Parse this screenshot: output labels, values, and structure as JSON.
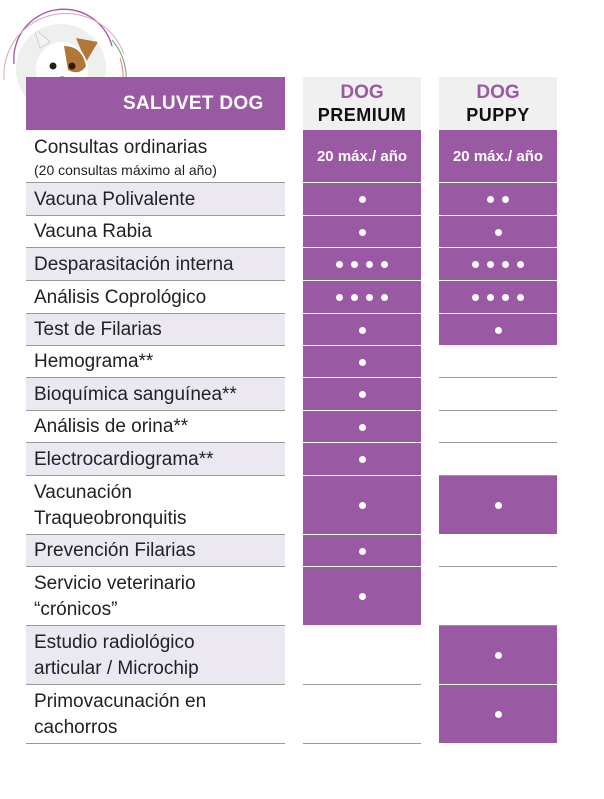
{
  "header": {
    "brand_title": "SALUVET DOG",
    "columns": [
      {
        "line1": "DOG",
        "line2": "PREMIUM"
      },
      {
        "line1": "DOG",
        "line2": "PUPPY"
      }
    ]
  },
  "colors": {
    "accent": "#9a5aa3",
    "row_shade": "#ebe8f1",
    "header_bg": "#f0f0f0"
  },
  "rows": [
    {
      "label": "Consultas ordinarias",
      "sub": "(20 consultas máximo al año)",
      "shaded": false,
      "premium": {
        "text": "20 máx./ año"
      },
      "puppy": {
        "text": "20 máx./ año"
      }
    },
    {
      "label": "Vacuna Polivalente",
      "shaded": true,
      "premium": {
        "dots": 1
      },
      "puppy": {
        "dots": 2
      }
    },
    {
      "label": "Vacuna Rabia",
      "shaded": false,
      "premium": {
        "dots": 1
      },
      "puppy": {
        "dots": 1
      }
    },
    {
      "label": "Desparasitación interna",
      "shaded": true,
      "premium": {
        "dots": 4
      },
      "puppy": {
        "dots": 4
      }
    },
    {
      "label": "Análisis Coprológico",
      "shaded": false,
      "premium": {
        "dots": 4
      },
      "puppy": {
        "dots": 4
      }
    },
    {
      "label": "Test de Filarias",
      "shaded": true,
      "premium": {
        "dots": 1
      },
      "puppy": {
        "dots": 1
      }
    },
    {
      "label": "Hemograma**",
      "shaded": false,
      "premium": {
        "dots": 1
      },
      "puppy": null
    },
    {
      "label": "Bioquímica sanguínea**",
      "shaded": true,
      "premium": {
        "dots": 1
      },
      "puppy": null
    },
    {
      "label": "Análisis de orina**",
      "shaded": false,
      "premium": {
        "dots": 1
      },
      "puppy": null
    },
    {
      "label": "Electrocardiograma**",
      "shaded": true,
      "premium": {
        "dots": 1
      },
      "puppy": null
    },
    {
      "label": "Vacunación Traqueobronquitis",
      "lines": [
        "Vacunación",
        "Traqueobronquitis"
      ],
      "shaded": false,
      "premium": {
        "dots": 1
      },
      "puppy": {
        "dots": 1
      }
    },
    {
      "label": "Prevención Filarias",
      "shaded": true,
      "premium": {
        "dots": 1
      },
      "puppy": null
    },
    {
      "label": "Servicio veterinario “crónicos”",
      "lines": [
        "Servicio veterinario",
        "“crónicos”"
      ],
      "shaded": false,
      "premium": {
        "dots": 1
      },
      "puppy": null
    },
    {
      "label": "Estudio radiológico articular / Microchip",
      "lines": [
        "Estudio radiológico",
        "articular / Microchip"
      ],
      "shaded": true,
      "premium": null,
      "puppy": {
        "dots": 1
      }
    },
    {
      "label": "Primovacunación en cachorros",
      "lines": [
        "Primovacunación en",
        "cachorros"
      ],
      "shaded": false,
      "premium": null,
      "puppy": {
        "dots": 1
      }
    }
  ]
}
